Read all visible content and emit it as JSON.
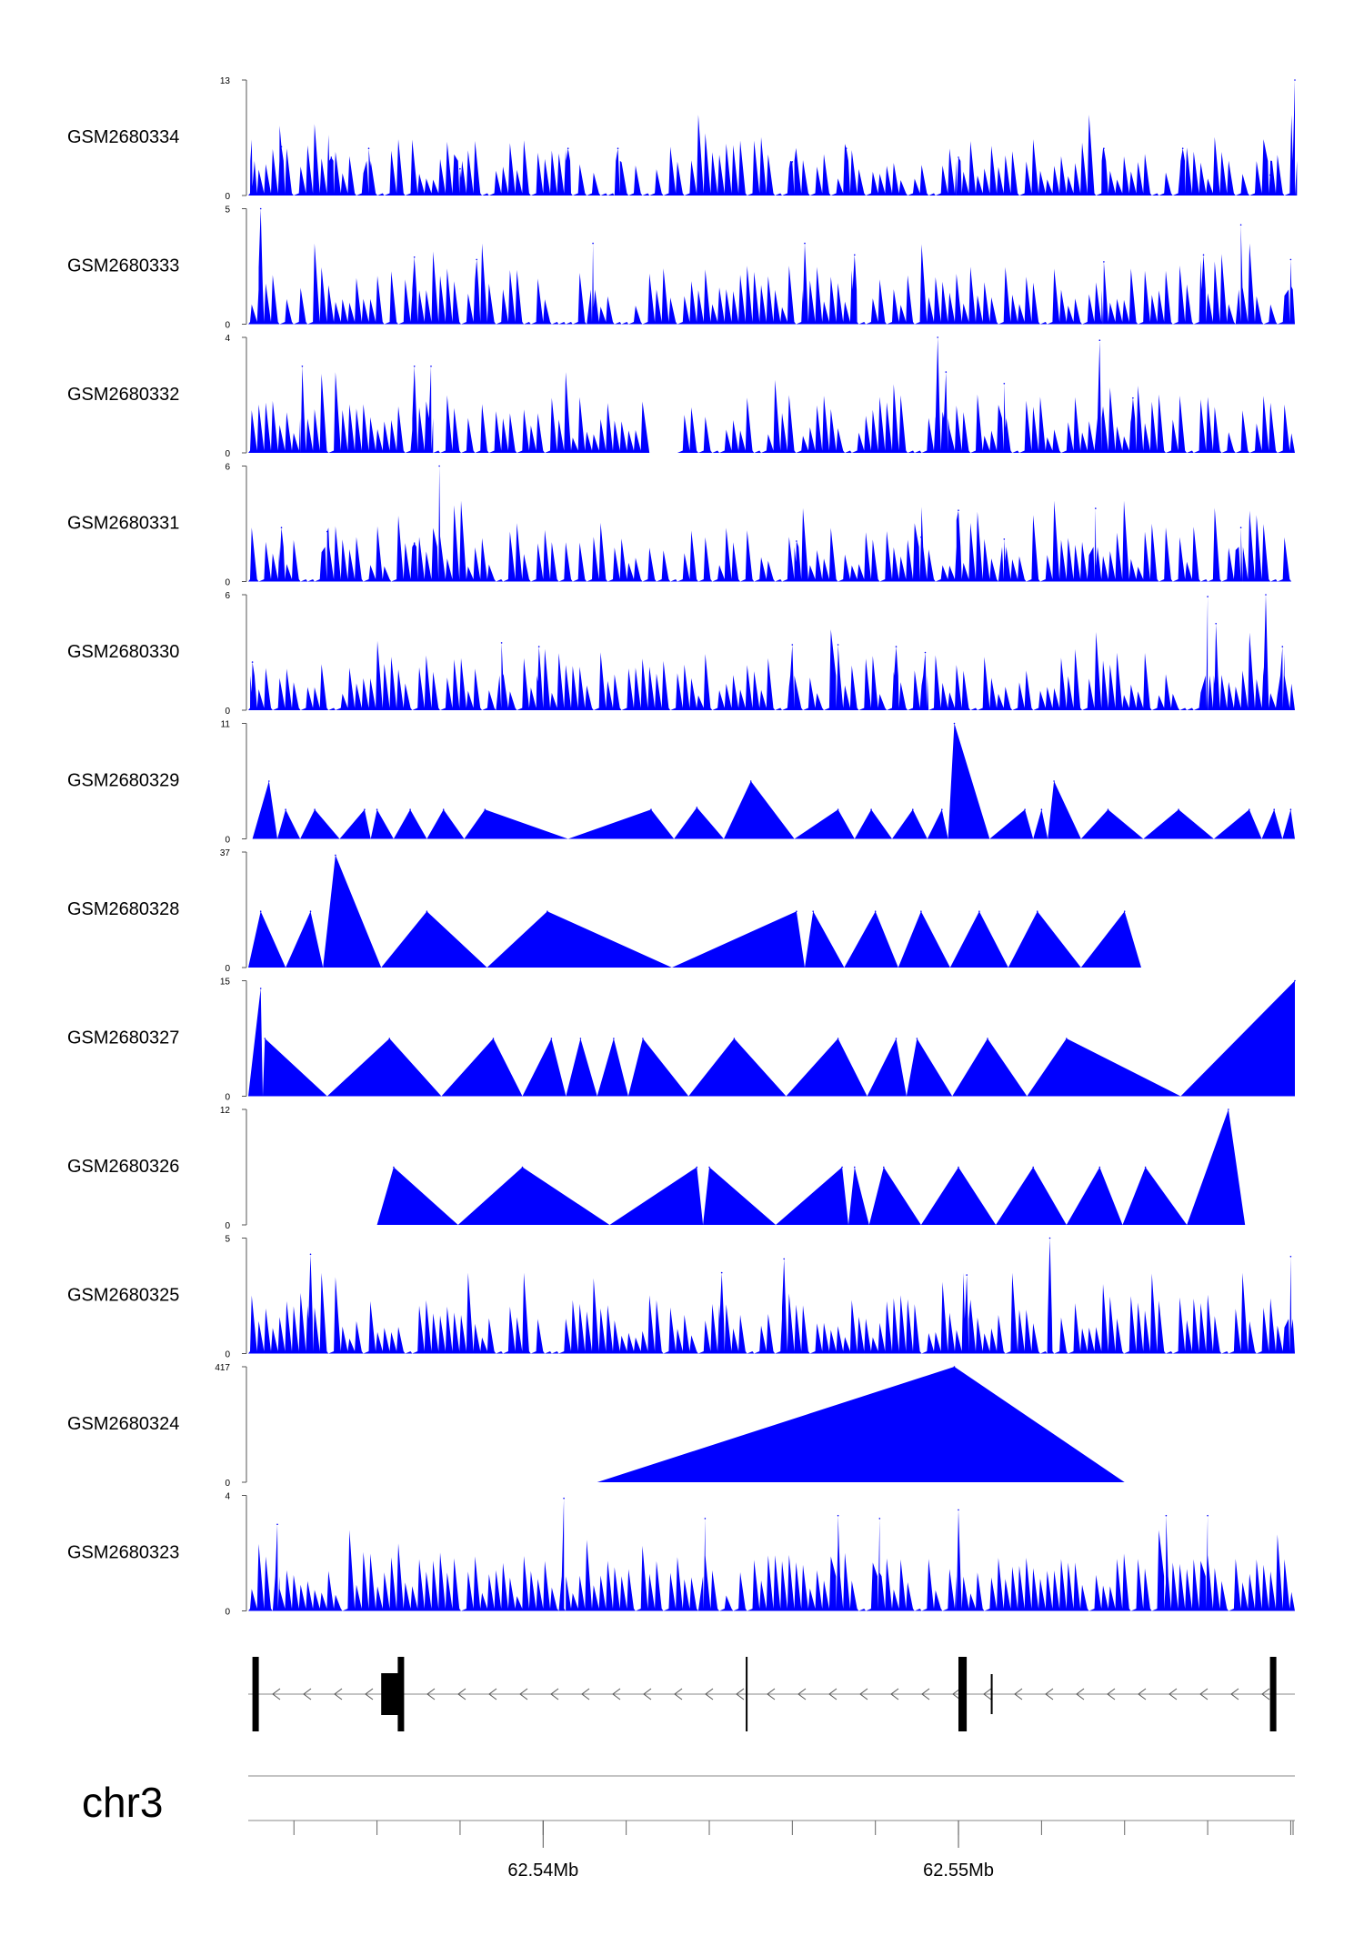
{
  "chart_data": {
    "type": "area",
    "title": "",
    "chromosome": "chr3",
    "genomic_axis": {
      "unit": "Mb",
      "range": [
        62.5329,
        62.5581
      ],
      "labeled_ticks": [
        {
          "value": 62.54,
          "label": "62.54Mb"
        },
        {
          "value": 62.55,
          "label": "62.55Mb"
        }
      ],
      "minor_ticks": [
        62.534,
        62.536,
        62.538,
        62.54,
        62.542,
        62.544,
        62.546,
        62.548,
        62.55,
        62.552,
        62.554,
        62.556,
        62.558
      ]
    },
    "fill_color": "#0000ff",
    "series": [
      {
        "name": "GSM2680334",
        "ylim": [
          0,
          13
        ],
        "ymax_label": "13",
        "ymin_label": "0",
        "pattern": "dense",
        "peaks": [
          [
            62.533,
            1.0
          ],
          [
            62.5337,
            5.5
          ],
          [
            62.5349,
            4.3
          ],
          [
            62.5358,
            5.3
          ],
          [
            62.538,
            3.0
          ],
          [
            62.5406,
            5.3
          ],
          [
            62.5418,
            5.3
          ],
          [
            62.546,
            3.8
          ],
          [
            62.5473,
            5.3
          ],
          [
            62.55,
            4.3
          ],
          [
            62.5535,
            5.3
          ],
          [
            62.5554,
            5.3
          ],
          [
            62.5575,
            2.3
          ],
          [
            62.5581,
            13.0
          ]
        ],
        "seed": 3
      },
      {
        "name": "GSM2680333",
        "ylim": [
          0,
          5
        ],
        "ymax_label": "5",
        "ymin_label": "0",
        "pattern": "dense",
        "peaks": [
          [
            62.5332,
            5.0
          ],
          [
            62.5369,
            2.9
          ],
          [
            62.5384,
            2.8
          ],
          [
            62.5412,
            3.5
          ],
          [
            62.5463,
            3.5
          ],
          [
            62.5475,
            3.0
          ],
          [
            62.5535,
            2.7
          ],
          [
            62.5559,
            3.0
          ],
          [
            62.5568,
            4.3
          ],
          [
            62.558,
            2.8
          ]
        ],
        "seed": 7
      },
      {
        "name": "GSM2680332",
        "ylim": [
          0,
          4
        ],
        "ymax_label": "4",
        "ymin_label": "0",
        "pattern": "dense",
        "peaks": [
          [
            62.5342,
            3.0
          ],
          [
            62.5369,
            3.0
          ],
          [
            62.5373,
            3.0
          ],
          [
            62.5495,
            4.0
          ],
          [
            62.5497,
            2.8
          ],
          [
            62.5511,
            2.4
          ],
          [
            62.5534,
            3.9
          ],
          [
            62.5542,
            1.9
          ]
        ],
        "gaps": [
          [
            62.5425,
            62.5433
          ]
        ],
        "seed": 11
      },
      {
        "name": "GSM2680331",
        "ylim": [
          0,
          6
        ],
        "ymax_label": "6",
        "ymin_label": "0",
        "pattern": "dense",
        "peaks": [
          [
            62.5337,
            2.8
          ],
          [
            62.5348,
            2.6
          ],
          [
            62.5369,
            2.0
          ],
          [
            62.5375,
            6.0
          ],
          [
            62.5461,
            2.1
          ],
          [
            62.5491,
            2.3
          ],
          [
            62.55,
            3.7
          ],
          [
            62.5511,
            2.2
          ],
          [
            62.5533,
            3.8
          ],
          [
            62.5568,
            2.8
          ]
        ],
        "seed": 13
      },
      {
        "name": "GSM2680330",
        "ylim": [
          0,
          6
        ],
        "ymax_label": "6",
        "ymin_label": "0",
        "pattern": "dense",
        "peaks": [
          [
            62.533,
            2.5
          ],
          [
            62.539,
            3.5
          ],
          [
            62.5399,
            3.3
          ],
          [
            62.546,
            3.4
          ],
          [
            62.5471,
            3.4
          ],
          [
            62.5485,
            3.3
          ],
          [
            62.5492,
            3.0
          ],
          [
            62.556,
            5.9
          ],
          [
            62.5562,
            4.5
          ],
          [
            62.5574,
            6.0
          ],
          [
            62.5578,
            3.3
          ]
        ],
        "seed": 17
      },
      {
        "name": "GSM2680329",
        "ylim": [
          0,
          11
        ],
        "ymax_label": "11",
        "ymin_label": "0",
        "pattern": "sparse",
        "peaks": [
          [
            62.5334,
            5.5
          ],
          [
            62.5338,
            2.8
          ],
          [
            62.5345,
            2.8
          ],
          [
            62.5357,
            2.8
          ],
          [
            62.536,
            2.8
          ],
          [
            62.5368,
            2.8
          ],
          [
            62.5376,
            2.8
          ],
          [
            62.5386,
            2.8
          ],
          [
            62.5426,
            2.8
          ],
          [
            62.5437,
            3.0
          ],
          [
            62.545,
            5.5
          ],
          [
            62.5471,
            2.8
          ],
          [
            62.5479,
            2.8
          ],
          [
            62.5489,
            2.8
          ],
          [
            62.5496,
            2.8
          ],
          [
            62.5499,
            11.0
          ],
          [
            62.5516,
            2.8
          ],
          [
            62.552,
            2.8
          ],
          [
            62.5523,
            5.5
          ],
          [
            62.5536,
            2.8
          ],
          [
            62.5553,
            2.8
          ],
          [
            62.557,
            2.8
          ],
          [
            62.5576,
            2.8
          ],
          [
            62.558,
            2.8
          ]
        ],
        "seed": 19
      },
      {
        "name": "GSM2680328",
        "ylim": [
          0,
          37
        ],
        "ymax_label": "37",
        "ymin_label": "0",
        "pattern": "triangles",
        "peaks": [
          [
            62.5332,
            18.0
          ],
          [
            62.5344,
            18.0
          ],
          [
            62.535,
            36.0
          ],
          [
            62.5372,
            18.0
          ],
          [
            62.5401,
            18.0
          ],
          [
            62.5461,
            18.0
          ],
          [
            62.5465,
            18.0
          ],
          [
            62.548,
            18.0
          ],
          [
            62.5491,
            18.0
          ],
          [
            62.5505,
            18.0
          ],
          [
            62.5519,
            18.0
          ],
          [
            62.554,
            18.0
          ]
        ],
        "seed": 23
      },
      {
        "name": "GSM2680327",
        "ylim": [
          0,
          15
        ],
        "ymax_label": "15",
        "ymin_label": "0",
        "pattern": "triangles",
        "peaks": [
          [
            62.5332,
            14.0
          ],
          [
            62.5333,
            7.5
          ],
          [
            62.5363,
            7.5
          ],
          [
            62.5388,
            7.5
          ],
          [
            62.5402,
            7.5
          ],
          [
            62.5409,
            7.5
          ],
          [
            62.5417,
            7.5
          ],
          [
            62.5424,
            7.5
          ],
          [
            62.5446,
            7.5
          ],
          [
            62.5471,
            7.5
          ],
          [
            62.5485,
            7.5
          ],
          [
            62.549,
            7.5
          ],
          [
            62.5507,
            7.5
          ],
          [
            62.5526,
            7.5
          ],
          [
            62.5581,
            15.0
          ]
        ],
        "seed": 29
      },
      {
        "name": "GSM2680326",
        "ylim": [
          0,
          12
        ],
        "ymax_label": "12",
        "ymin_label": "0",
        "pattern": "triangles",
        "peaks": [
          [
            62.5364,
            6.0
          ],
          [
            62.5395,
            6.0
          ],
          [
            62.5437,
            6.0
          ],
          [
            62.544,
            6.0
          ],
          [
            62.5472,
            6.0
          ],
          [
            62.5475,
            6.0
          ],
          [
            62.5482,
            6.0
          ],
          [
            62.55,
            6.0
          ],
          [
            62.5518,
            6.0
          ],
          [
            62.5534,
            6.0
          ],
          [
            62.5545,
            6.0
          ],
          [
            62.5565,
            12.0
          ]
        ],
        "seed": 31
      },
      {
        "name": "GSM2680325",
        "ylim": [
          0,
          5
        ],
        "ymax_label": "5",
        "ymin_label": "0",
        "pattern": "dense",
        "peaks": [
          [
            62.5344,
            4.3
          ],
          [
            62.5443,
            3.5
          ],
          [
            62.5458,
            4.1
          ],
          [
            62.5502,
            3.4
          ],
          [
            62.5522,
            5.0
          ],
          [
            62.558,
            4.2
          ]
        ],
        "seed": 37
      },
      {
        "name": "GSM2680324",
        "ylim": [
          0,
          417
        ],
        "ymax_label": "417",
        "ymin_label": "0",
        "pattern": "single-triangle",
        "peaks": [
          [
            62.5499,
            417.0
          ]
        ],
        "span": [
          62.5413,
          62.554
        ]
      },
      {
        "name": "GSM2680323",
        "ylim": [
          0,
          4
        ],
        "ymax_label": "4",
        "ymin_label": "0",
        "pattern": "dense",
        "peaks": [
          [
            62.5336,
            3.0
          ],
          [
            62.5405,
            3.9
          ],
          [
            62.5439,
            3.2
          ],
          [
            62.5471,
            3.3
          ],
          [
            62.5481,
            3.2
          ],
          [
            62.55,
            3.5
          ],
          [
            62.555,
            3.3
          ],
          [
            62.556,
            3.3
          ]
        ],
        "seed": 41
      }
    ],
    "gene_model": {
      "strand": "-",
      "exons": [
        [
          62.533,
          62.53303
        ],
        [
          62.5361,
          62.5366
        ],
        [
          62.5365,
          62.53665
        ],
        [
          62.55,
          62.5502
        ],
        [
          62.5575,
          62.55763
        ]
      ],
      "marks": [
        62.5449,
        62.5508
      ]
    }
  }
}
